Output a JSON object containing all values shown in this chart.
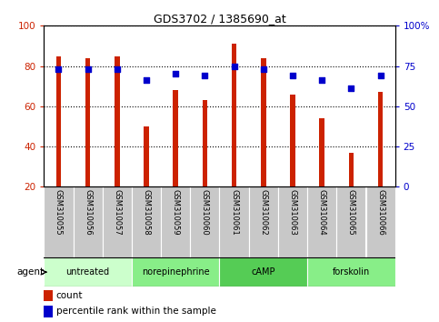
{
  "title": "GDS3702 / 1385690_at",
  "samples": [
    "GSM310055",
    "GSM310056",
    "GSM310057",
    "GSM310058",
    "GSM310059",
    "GSM310060",
    "GSM310061",
    "GSM310062",
    "GSM310063",
    "GSM310064",
    "GSM310065",
    "GSM310066"
  ],
  "count_values": [
    85,
    84,
    85,
    50,
    68,
    63,
    91,
    84,
    66,
    54,
    37,
    67
  ],
  "percentile_values": [
    73,
    73,
    73,
    66,
    70,
    69,
    75,
    73,
    69,
    66,
    61,
    69
  ],
  "bar_color": "#cc2200",
  "dot_color": "#0000cc",
  "agent_groups": [
    {
      "label": "untreated",
      "start": 0,
      "end": 3
    },
    {
      "label": "norepinephrine",
      "start": 3,
      "end": 6
    },
    {
      "label": "cAMP",
      "start": 6,
      "end": 9
    },
    {
      "label": "forskolin",
      "start": 9,
      "end": 12
    }
  ],
  "group_colors": [
    "#ccffcc",
    "#88dd88",
    "#66cc66",
    "#99ee99"
  ],
  "ylim_left": [
    20,
    100
  ],
  "ylim_right": [
    0,
    100
  ],
  "yticks_left": [
    20,
    40,
    60,
    80,
    100
  ],
  "yticks_right": [
    0,
    25,
    50,
    75,
    100
  ],
  "ytick_labels_right": [
    "0",
    "25",
    "50",
    "75",
    "100%"
  ],
  "left_tick_color": "#cc2200",
  "right_tick_color": "#0000cc",
  "bar_width": 0.18,
  "tick_area_color": "#c8c8c8",
  "legend_count": "count",
  "legend_percentile": "percentile rank within the sample",
  "agent_label": "agent"
}
